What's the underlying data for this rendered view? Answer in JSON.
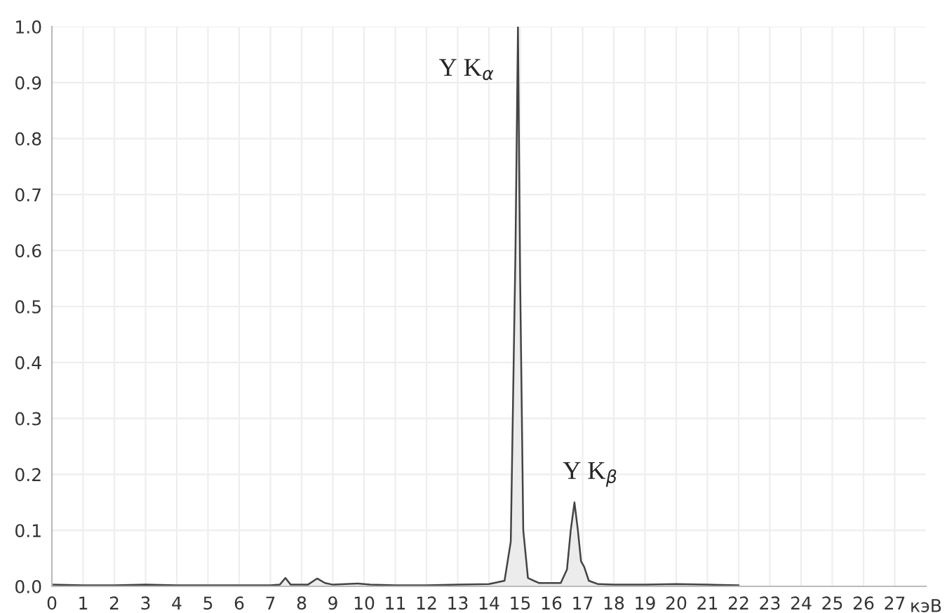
{
  "chart_data": {
    "type": "area",
    "xlabel": "кэВ",
    "x": [
      0,
      1,
      2,
      3,
      4,
      5,
      6,
      7,
      7.3,
      7.48,
      7.65,
      8.2,
      8.5,
      8.75,
      9.0,
      9.8,
      10.2,
      11,
      12,
      13,
      14,
      14.5,
      14.7,
      14.85,
      14.93,
      15.0,
      15.1,
      15.25,
      15.6,
      16.3,
      16.5,
      16.62,
      16.74,
      16.85,
      16.95,
      17.05,
      17.2,
      17.5,
      18,
      19,
      20,
      21,
      22
    ],
    "series": [
      {
        "color": "#444444",
        "values": [
          0.003,
          0.002,
          0.002,
          0.003,
          0.002,
          0.002,
          0.002,
          0.002,
          0.003,
          0.015,
          0.003,
          0.003,
          0.014,
          0.006,
          0.003,
          0.005,
          0.003,
          0.002,
          0.002,
          0.003,
          0.004,
          0.01,
          0.08,
          0.6,
          1.0,
          0.55,
          0.1,
          0.015,
          0.006,
          0.006,
          0.03,
          0.1,
          0.15,
          0.1,
          0.045,
          0.035,
          0.01,
          0.004,
          0.003,
          0.003,
          0.004,
          0.003,
          0.002
        ]
      }
    ],
    "annotations": [
      {
        "text": "Y K$_{α}$",
        "x": 14.93,
        "y": 1.0
      },
      {
        "text": "Y K$_{β}$",
        "x": 16.74,
        "y": 0.15
      }
    ],
    "xlim": [
      0,
      28
    ],
    "xticks": [
      0,
      1,
      2,
      3,
      4,
      5,
      6,
      7,
      8,
      9,
      10,
      11,
      12,
      13,
      14,
      15,
      16,
      17,
      18,
      19,
      20,
      21,
      22,
      23,
      24,
      25,
      26,
      27
    ],
    "ylim": [
      0,
      1.0
    ],
    "yticks": [
      {
        "value": 0,
        "label": "0.0"
      },
      {
        "value": 0.1,
        "label": "0.1"
      },
      {
        "value": 0.2,
        "label": "0.2"
      },
      {
        "value": 0.3,
        "label": "0.3"
      },
      {
        "value": 0.4,
        "label": "0.4"
      },
      {
        "value": 0.5,
        "label": "0.5"
      },
      {
        "value": 0.6,
        "label": "0.6"
      },
      {
        "value": 0.7,
        "label": "0.7"
      },
      {
        "value": 0.8,
        "label": "0.8"
      },
      {
        "value": 0.9,
        "label": "0.9"
      },
      {
        "value": 1.0,
        "label": "1.0"
      }
    ],
    "grid": true
  }
}
